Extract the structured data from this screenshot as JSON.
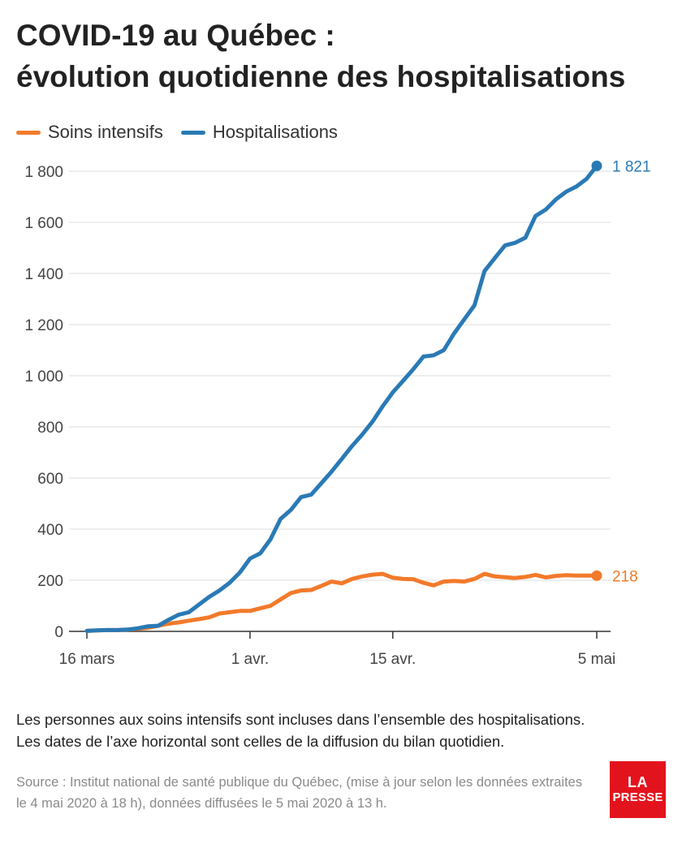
{
  "title": {
    "line1": "COVID-19 au Québec :",
    "line2": "évolution quotidienne des hospitalisations"
  },
  "colors": {
    "soins": "#f27a2b",
    "hosp": "#2a7ab5",
    "axis": "#333333",
    "grid": "#dddddd",
    "brand": "#e3131e"
  },
  "chart_data": {
    "type": "line",
    "title": "COVID-19 au Québec : évolution quotidienne des hospitalisations",
    "xlabel": "",
    "ylabel": "",
    "x_start_label": "16 mars",
    "x_end_label": "5 mai",
    "x_tick_labels": [
      "16 mars",
      "1 avr.",
      "15 avr.",
      "5 mai"
    ],
    "y_ticks": [
      0,
      200,
      400,
      600,
      800,
      1000,
      1200,
      1400,
      1600,
      1800
    ],
    "y_tick_labels": [
      "0",
      "200",
      "400",
      "600",
      "800",
      "1 000",
      "1 200",
      "1 400",
      "1 600",
      "1 800"
    ],
    "ylim": [
      0,
      1850
    ],
    "grid": true,
    "legend_position": "top-left",
    "series": [
      {
        "name": "Soins intensifs",
        "color": "#f27a2b",
        "end_label": "218",
        "values": [
          2,
          4,
          5,
          5,
          7,
          10,
          14,
          22,
          30,
          35,
          42,
          48,
          55,
          70,
          75,
          80,
          80,
          90,
          100,
          125,
          150,
          160,
          162,
          178,
          195,
          188,
          205,
          215,
          222,
          225,
          210,
          205,
          204,
          190,
          180,
          195,
          197,
          195,
          205,
          225,
          215,
          212,
          209,
          213,
          221,
          211,
          217,
          220,
          218,
          218,
          218
        ]
      },
      {
        "name": "Hospitalisations",
        "color": "#2a7ab5",
        "end_label": "1 821",
        "values": [
          2,
          4,
          5,
          5,
          7,
          12,
          20,
          22,
          45,
          65,
          75,
          105,
          135,
          160,
          190,
          230,
          285,
          305,
          360,
          440,
          475,
          525,
          535,
          580,
          625,
          675,
          725,
          770,
          820,
          880,
          935,
          980,
          1025,
          1075,
          1080,
          1100,
          1165,
          1220,
          1275,
          1410,
          1460,
          1510,
          1520,
          1540,
          1625,
          1650,
          1690,
          1720,
          1740,
          1770,
          1821
        ]
      }
    ]
  },
  "notes": {
    "line1": "Les personnes aux soins intensifs sont incluses dans l’ensemble des hospitalisations.",
    "line2": "Les dates de l’axe horizontal sont celles de la diffusion du bilan quotidien."
  },
  "source": "Source : Institut national de santé publique du Québec, (mise à jour selon les données extraites le 4 mai 2020 à 18 h), données diffusées le 5 mai 2020 à 13 h.",
  "logo": {
    "line1": "LA",
    "line2": "PRESSE"
  }
}
